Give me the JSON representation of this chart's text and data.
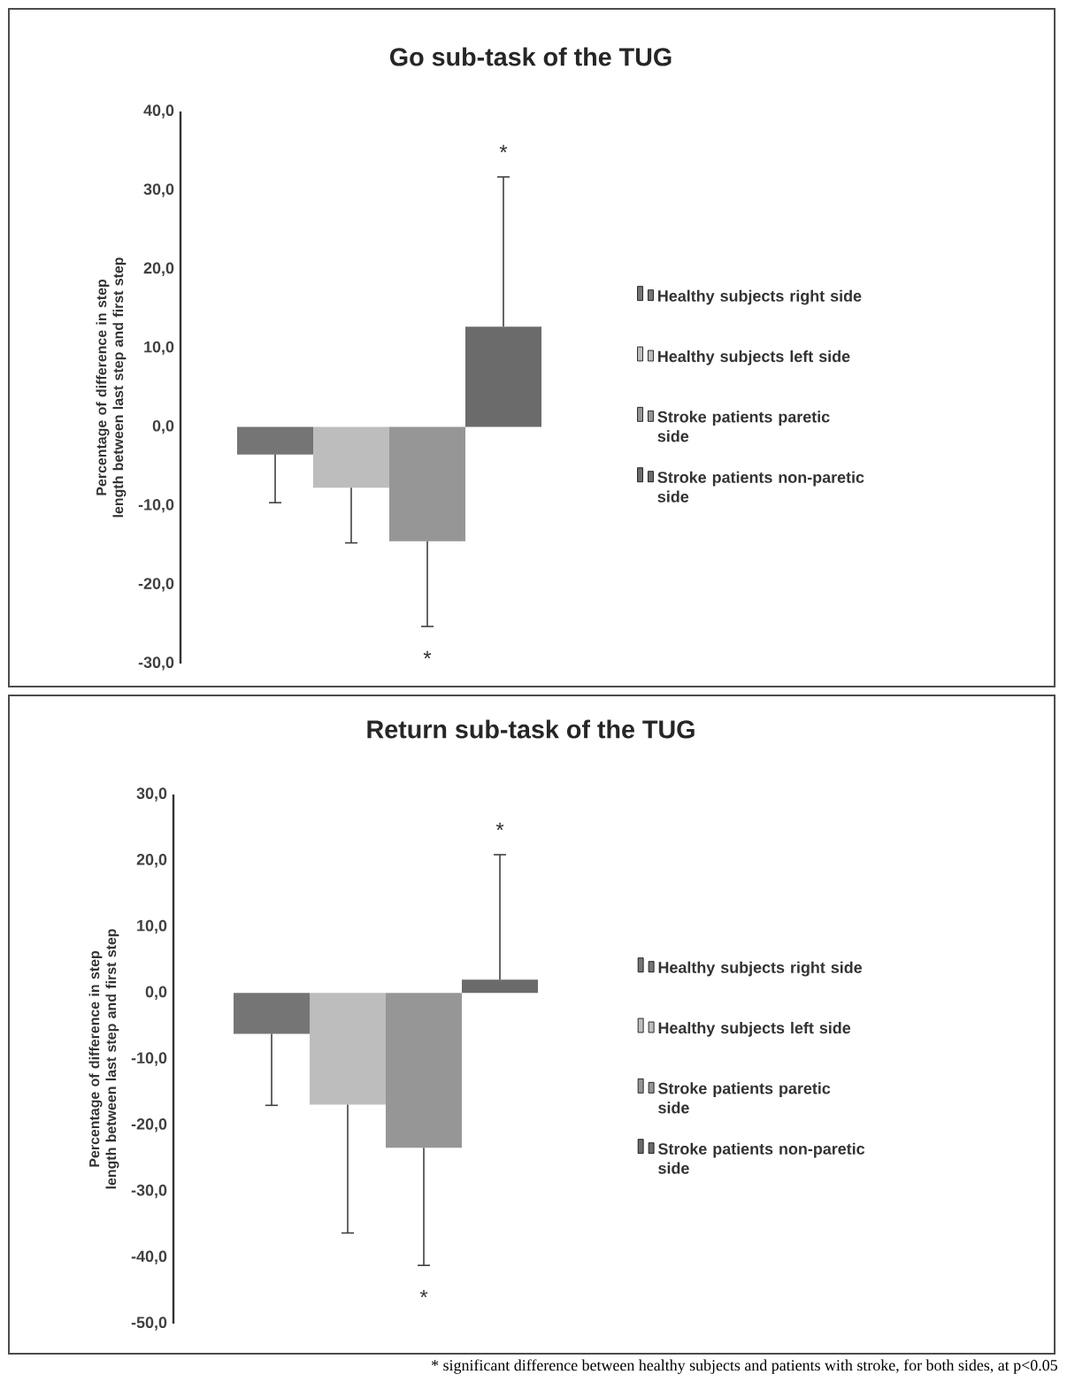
{
  "chart_data": [
    {
      "type": "bar",
      "title": "Go sub-task of the TUG",
      "ylabel": "Percentage of difference in step length between last step and first step",
      "categories": [
        null
      ],
      "legend": "right",
      "ylim": [
        -30,
        40
      ],
      "yticks": [
        {
          "value": -30,
          "label": "-30,0"
        },
        {
          "value": -20,
          "label": "-20,0"
        },
        {
          "value": -10,
          "label": "-10,0"
        },
        {
          "value": 0,
          "label": "0,0"
        },
        {
          "value": 10,
          "label": "10,0"
        },
        {
          "value": 20,
          "label": "20,0"
        },
        {
          "value": 30,
          "label": "30,0"
        },
        {
          "value": 40,
          "label": "40,0"
        }
      ],
      "series": [
        {
          "name": "Healthy subjects right side",
          "color": "#757575",
          "values": [
            -3.5
          ],
          "errors": [
            [
              -9.6,
              -3.5
            ]
          ]
        },
        {
          "name": "Healthy subjects left side",
          "color": "#bdbdbd",
          "values": [
            -7.7
          ],
          "errors": [
            [
              -14.7,
              -7.7
            ]
          ]
        },
        {
          "name": "Stroke patients paretic side",
          "color": "#969696",
          "values": [
            -14.5
          ],
          "errors": [
            [
              -25.3,
              -14.5
            ]
          ]
        },
        {
          "name": "Stroke patients non-paretic side",
          "color": "#6b6b6b",
          "values": [
            12.7
          ],
          "errors": [
            [
              12.7,
              31.7
            ]
          ]
        }
      ],
      "annotations": [
        "*",
        "*"
      ]
    },
    {
      "type": "bar",
      "title": "Return sub-task of the TUG",
      "ylabel": "Percentage of difference in step length between last step and first step",
      "categories": [
        null
      ],
      "legend": "right",
      "ylim": [
        -50,
        30
      ],
      "yticks": [
        {
          "value": -50,
          "label": "-50,0"
        },
        {
          "value": -40,
          "label": "-40,0"
        },
        {
          "value": -30,
          "label": "-30,0"
        },
        {
          "value": -20,
          "label": "-20,0"
        },
        {
          "value": -10,
          "label": "-10,0"
        },
        {
          "value": 0,
          "label": "0,0"
        },
        {
          "value": 10,
          "label": "10,0"
        },
        {
          "value": 20,
          "label": "20,0"
        },
        {
          "value": 30,
          "label": "30,0"
        }
      ],
      "series": [
        {
          "name": "Healthy subjects right side",
          "color": "#757575",
          "values": [
            -6.2
          ],
          "errors": [
            [
              -17.0,
              -6.2
            ]
          ]
        },
        {
          "name": "Healthy subjects left side",
          "color": "#bdbdbd",
          "values": [
            -16.9
          ],
          "errors": [
            [
              -36.3,
              -16.9
            ]
          ]
        },
        {
          "name": "Stroke patients paretic side",
          "color": "#969696",
          "values": [
            -23.4
          ],
          "errors": [
            [
              -41.2,
              -23.4
            ]
          ]
        },
        {
          "name": "Stroke patients non-paretic side",
          "color": "#6b6b6b",
          "values": [
            2.0
          ],
          "errors": [
            [
              2.0,
              20.9
            ]
          ]
        }
      ],
      "annotations": [
        "*",
        "*",
        "* significant difference between healthy subjects and patients with stroke, for both sides, at p<0.05"
      ]
    }
  ]
}
